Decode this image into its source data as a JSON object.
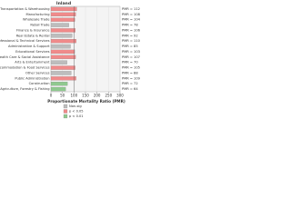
{
  "chart_data": {
    "type": "bar",
    "orientation": "horizontal",
    "title": "Inland",
    "categories": [
      "Transportation & Warehousing",
      "Manufacturing",
      "Wholesale Trade",
      "Retail Trade",
      "Finance & Insurance",
      "Real Estate & Rental",
      "Professional & Technical Services",
      "Administrative & Support",
      "Educational Services",
      "Health Care & Social Assistance",
      "Arts & Entertainment",
      "Accommodation & Food Services",
      "Other Services",
      "Public Administration",
      "Construction",
      "Agriculture, Forestry & Fishing"
    ],
    "series": [
      {
        "name": "Non-sig",
        "color": "#bdbdbd",
        "values": [
          null,
          null,
          null,
          78,
          null,
          92,
          null,
          85,
          null,
          null,
          70,
          null,
          88,
          null,
          null,
          null
        ]
      },
      {
        "name": "p < 0.05",
        "color": "#f08a8a",
        "values": [
          112,
          108,
          104,
          null,
          106,
          null,
          110,
          null,
          103,
          107,
          null,
          105,
          null,
          109,
          null,
          null
        ]
      },
      {
        "name": "p < 0.01",
        "color": "#8fc98f",
        "values": [
          null,
          null,
          null,
          null,
          null,
          null,
          null,
          null,
          null,
          null,
          null,
          null,
          null,
          null,
          72,
          64
        ]
      }
    ],
    "value_labels": [
      "PMR = 112",
      "PMR = 108",
      "PMR = 104",
      "PMR = 78",
      "PMR = 106",
      "PMR = 92",
      "PMR = 110",
      "PMR = 85",
      "PMR = 103",
      "PMR = 107",
      "PMR = 70",
      "PMR = 105",
      "PMR = 88",
      "PMR = 109",
      "PMR = 72",
      "PMR = 64"
    ],
    "xlabel": "Proportionate Mortality Ratio (PMR)",
    "xlim": [
      0,
      300
    ],
    "xticks": [
      0,
      50,
      100,
      150,
      200,
      250,
      300
    ]
  }
}
